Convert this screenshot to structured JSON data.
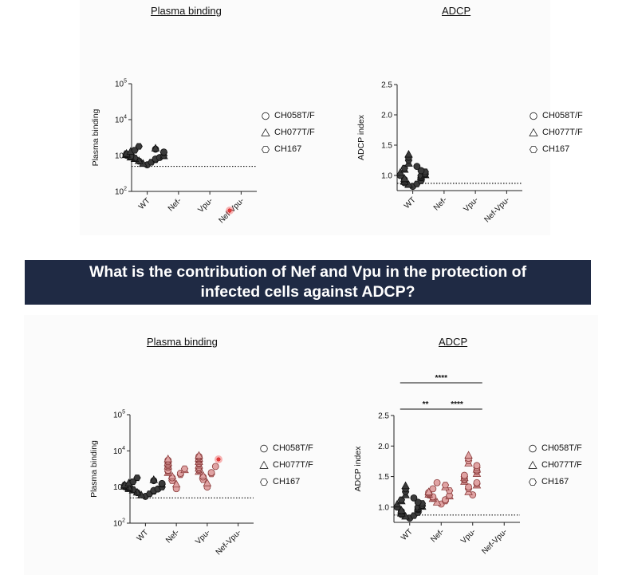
{
  "banner": {
    "line1": "What is the contribution of Nef and Vpu in the protection of",
    "line2": "infected cells against ADCP?"
  },
  "legend_items": [
    "CH058T/F",
    "CH077T/F",
    "CH167"
  ],
  "colors": {
    "wt": "#3a3a3a",
    "mutant": "#e0a3a3",
    "banner": "#1f2a44"
  },
  "chart_data": [
    {
      "type": "scatter",
      "title": "Plasma binding",
      "ylabel": "Plasma binding",
      "scale": "log",
      "ylim": [
        100,
        100000
      ],
      "yticks": [
        {
          "v": 100,
          "base": "10",
          "exp": "2"
        },
        {
          "v": 1000,
          "base": "10",
          "exp": "3"
        },
        {
          "v": 10000,
          "base": "10",
          "exp": "4"
        },
        {
          "v": 100000,
          "base": "10",
          "exp": "5"
        }
      ],
      "categories": [
        "WT",
        "Nef-",
        "Vpu-",
        "Nef-Vpu-"
      ],
      "cutoff": 500,
      "series": [
        {
          "category": "WT",
          "color": "wt",
          "values": [
            550,
            600,
            650,
            700,
            720,
            760,
            800,
            820,
            850,
            880,
            900,
            920,
            950,
            980,
            1000,
            1020,
            1050,
            1080,
            1100,
            1150,
            1200,
            1250,
            1300,
            1400,
            1500,
            1600,
            1800
          ]
        }
      ],
      "significance": []
    },
    {
      "type": "scatter",
      "title": "ADCP",
      "ylabel": "ADCP index",
      "scale": "linear",
      "ylim": [
        0.75,
        2.5
      ],
      "yticks": [
        {
          "v": 1.0,
          "label": "1.0"
        },
        {
          "v": 1.5,
          "label": "1.5"
        },
        {
          "v": 2.0,
          "label": "2.0"
        },
        {
          "v": 2.5,
          "label": "2.5"
        }
      ],
      "categories": [
        "WT",
        "Nef-",
        "Vpu-",
        "Nef-Vpu-"
      ],
      "cutoff": 0.87,
      "series": [
        {
          "category": "WT",
          "color": "wt",
          "values": [
            0.82,
            0.85,
            0.86,
            0.88,
            0.9,
            0.91,
            0.93,
            0.95,
            0.96,
            0.97,
            0.98,
            1.0,
            1.0,
            1.01,
            1.02,
            1.03,
            1.05,
            1.06,
            1.08,
            1.1,
            1.12,
            1.15,
            1.2,
            1.25,
            1.3,
            1.35
          ]
        }
      ],
      "significance": []
    },
    {
      "type": "scatter",
      "title": "Plasma binding",
      "ylabel": "Plasma binding",
      "scale": "log",
      "ylim": [
        100,
        100000
      ],
      "yticks": [
        {
          "v": 100,
          "base": "10",
          "exp": "2"
        },
        {
          "v": 1000,
          "base": "10",
          "exp": "3"
        },
        {
          "v": 10000,
          "base": "10",
          "exp": "4"
        },
        {
          "v": 100000,
          "base": "10",
          "exp": "5"
        }
      ],
      "categories": [
        "WT",
        "Nef-",
        "Vpu-",
        "Nef-Vpu-"
      ],
      "cutoff": 500,
      "series": [
        {
          "category": "WT",
          "color": "wt",
          "values": [
            550,
            600,
            650,
            700,
            720,
            760,
            800,
            820,
            850,
            880,
            900,
            920,
            950,
            980,
            1000,
            1020,
            1050,
            1080,
            1100,
            1150,
            1200,
            1250,
            1300,
            1400,
            1500,
            1600,
            1800
          ]
        },
        {
          "category": "Nef-",
          "color": "mutant",
          "values": [
            900,
            1200,
            1500,
            1800,
            2000,
            2200,
            2400,
            2500,
            2700,
            2900,
            3000,
            3200,
            3500,
            3800,
            4000,
            4300,
            4700,
            5000,
            5500,
            6000
          ]
        },
        {
          "category": "Vpu-",
          "color": "mutant",
          "values": [
            1000,
            1300,
            1600,
            1900,
            2100,
            2300,
            2500,
            2700,
            2900,
            3100,
            3300,
            3500,
            3700,
            4000,
            4300,
            4600,
            5000,
            5400,
            5800,
            6200,
            6600,
            7000,
            7500
          ]
        }
      ],
      "significance": []
    },
    {
      "type": "scatter",
      "title": "ADCP",
      "ylabel": "ADCP index",
      "scale": "linear",
      "ylim": [
        0.75,
        2.5
      ],
      "yticks": [
        {
          "v": 1.0,
          "label": "1.0"
        },
        {
          "v": 1.5,
          "label": "1.5"
        },
        {
          "v": 2.0,
          "label": "2.0"
        },
        {
          "v": 2.5,
          "label": "2.5"
        }
      ],
      "categories": [
        "WT",
        "Nef-",
        "Vpu-",
        "Nef-Vpu-"
      ],
      "cutoff": 0.87,
      "series": [
        {
          "category": "WT",
          "color": "wt",
          "values": [
            0.82,
            0.85,
            0.86,
            0.88,
            0.9,
            0.91,
            0.93,
            0.95,
            0.96,
            0.97,
            0.98,
            1.0,
            1.0,
            1.01,
            1.02,
            1.03,
            1.05,
            1.06,
            1.08,
            1.1,
            1.12,
            1.15,
            1.2,
            1.25,
            1.3,
            1.35
          ]
        },
        {
          "category": "Nef-",
          "color": "mutant",
          "values": [
            1.05,
            1.08,
            1.1,
            1.12,
            1.14,
            1.15,
            1.17,
            1.18,
            1.19,
            1.2,
            1.21,
            1.22,
            1.24,
            1.25,
            1.27,
            1.3,
            1.33,
            1.36,
            1.4
          ]
        },
        {
          "category": "Vpu-",
          "color": "mutant",
          "values": [
            1.2,
            1.25,
            1.3,
            1.33,
            1.36,
            1.38,
            1.4,
            1.42,
            1.44,
            1.46,
            1.48,
            1.5,
            1.52,
            1.55,
            1.58,
            1.6,
            1.62,
            1.65,
            1.68,
            1.72,
            1.76,
            1.8,
            1.85
          ]
        }
      ],
      "significance": [
        {
          "from": "WT",
          "to": "Nef-",
          "label": "**"
        },
        {
          "from": "Nef-",
          "to": "Vpu-",
          "label": "****"
        },
        {
          "from": "WT",
          "to": "Vpu-",
          "label": "****"
        }
      ]
    }
  ]
}
